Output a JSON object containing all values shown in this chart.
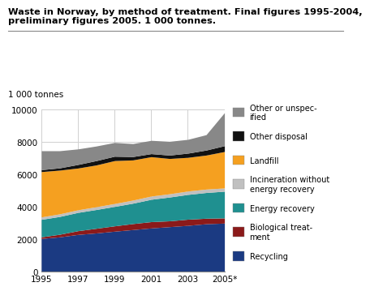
{
  "title_line1": "Waste in Norway, by method of treatment. Final figures 1995-2004,",
  "title_line2": "preliminary figures 2005. 1 000 tonnes.",
  "ylabel": "1 000 tonnes",
  "years": [
    1995,
    1996,
    1997,
    1998,
    1999,
    2000,
    2001,
    2002,
    2003,
    2004,
    2005
  ],
  "series": {
    "Recycling": [
      2030,
      2130,
      2280,
      2370,
      2480,
      2580,
      2680,
      2760,
      2840,
      2940,
      2980
    ],
    "Biological treatment": [
      100,
      160,
      230,
      290,
      330,
      370,
      390,
      360,
      380,
      340,
      320
    ],
    "Energy recovery": [
      1080,
      1100,
      1130,
      1160,
      1200,
      1260,
      1380,
      1470,
      1530,
      1590,
      1650
    ],
    "Incineration without energy recovery": [
      150,
      160,
      160,
      170,
      180,
      190,
      200,
      200,
      210,
      210,
      200
    ],
    "Landfill": [
      2800,
      2700,
      2580,
      2580,
      2650,
      2480,
      2430,
      2180,
      2080,
      2100,
      2250
    ],
    "Other disposal": [
      120,
      140,
      220,
      270,
      270,
      210,
      190,
      210,
      260,
      310,
      360
    ],
    "Other or unspecified": [
      1170,
      1060,
      960,
      900,
      850,
      800,
      820,
      850,
      850,
      950,
      2040
    ]
  },
  "colors": {
    "Recycling": "#1b3a82",
    "Biological treatment": "#8b1a1a",
    "Energy recovery": "#1f9090",
    "Incineration without energy recovery": "#c0c0c0",
    "Landfill": "#f5a020",
    "Other disposal": "#111111",
    "Other or unspecified": "#888888"
  },
  "legend_labels": [
    "Other or unspec-\nified",
    "Other disposal",
    "Landfill",
    "Incineration without\nenergy recovery",
    "Energy recovery",
    "Biological treat-\nment",
    "Recycling"
  ],
  "legend_keys": [
    "Other or unspecified",
    "Other disposal",
    "Landfill",
    "Incineration without energy recovery",
    "Energy recovery",
    "Biological treatment",
    "Recycling"
  ],
  "ylim": [
    0,
    10000
  ],
  "yticks": [
    0,
    2000,
    4000,
    6000,
    8000,
    10000
  ],
  "xtick_labels": [
    "1995",
    "1997",
    "1999",
    "2001",
    "2003",
    "2005*"
  ],
  "xtick_positions": [
    1995,
    1997,
    1999,
    2001,
    2003,
    2005
  ],
  "background_color": "#ffffff"
}
